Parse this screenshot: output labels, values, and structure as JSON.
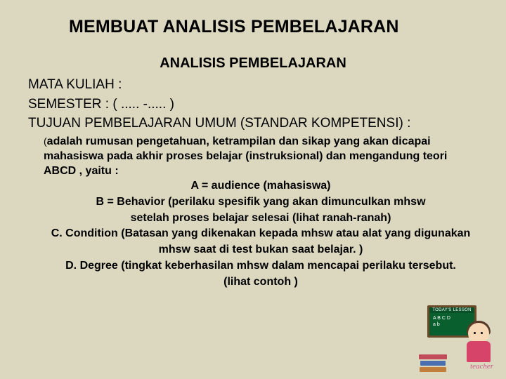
{
  "title": "MEMBUAT ANALISIS PEMBELAJARAN",
  "subtitle": "ANALISIS  PEMBELAJARAN",
  "meta": {
    "line1": "MATA KULIAH  :",
    "line2": "SEMESTER      :       ( ..... -..... )",
    "line3": "TUJUAN PEMBELAJARAN   UMUM (STANDAR KOMPETENSI) :"
  },
  "desc": {
    "open_paren": "(",
    "intro": "adalah rumusan pengetahuan, ketrampilan dan sikap yang  akan dicapai mahasiswa pada akhir proses belajar (instruksional)  dan mengandung teori ABCD , yaitu :",
    "a": "A = audience (mahasiswa)",
    "b": "B = Behavior (perilaku spesifik yang akan dimunculkan mhsw",
    "b2": "setelah proses belajar selesai (lihat ranah-ranah)",
    "c": "C. Condition (Batasan yang dikenakan kepada mhsw atau alat yang digunakan",
    "c2": "mhsw saat di test bukan saat belajar. )",
    "d": "D. Degree (tingkat keberhasilan mhsw dalam mencapai perilaku tersebut.",
    "footer": "(lihat contoh )"
  },
  "illus": {
    "board_header": "TODAY'S LESSON",
    "board_l1": "A B C D",
    "board_l2": "a b",
    "label": "teacher"
  },
  "colors": {
    "background": "#dcd8c0",
    "text": "#000000",
    "board_bg": "#0a5f2e",
    "board_border": "#6b4a2a",
    "teacher_body": "#d6446a",
    "teacher_label": "#c85a8a"
  }
}
